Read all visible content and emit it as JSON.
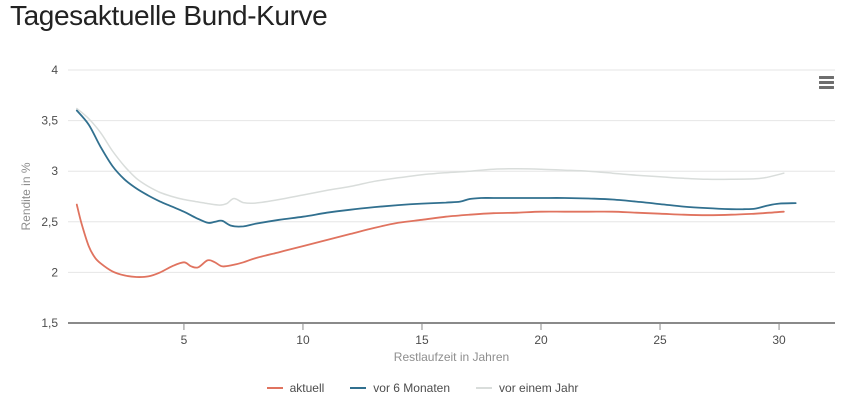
{
  "chart": {
    "title": "Tagesaktuelle Bund-Kurve",
    "context_menu_icon": "hamburger-menu",
    "colors": {
      "title_text": "#222222",
      "axis_line": "#8a8a8a",
      "gridline": "#e6e6e6",
      "tick_text": "#4d4d4d",
      "axis_title_text": "#8e8e8e",
      "legend_text": "#4d4d4d",
      "menu_icon": "#6e6e6e"
    }
  },
  "chart_data": {
    "type": "line",
    "title": "Tagesaktuelle Bund-Kurve",
    "xlabel": "Restlaufzeit in Jahren",
    "ylabel": "Rendite in %",
    "xlim": [
      0.13,
      32.35
    ],
    "ylim": [
      1.5,
      4
    ],
    "grid": "horizontal",
    "legend_position": "bottom",
    "x_ticks": [
      {
        "value": 5,
        "label": "5"
      },
      {
        "value": 10,
        "label": "10"
      },
      {
        "value": 15,
        "label": "15"
      },
      {
        "value": 20,
        "label": "20"
      },
      {
        "value": 25,
        "label": "25"
      },
      {
        "value": 30,
        "label": "30"
      }
    ],
    "y_ticks": [
      {
        "value": 4,
        "label": "4"
      },
      {
        "value": 3.5,
        "label": "3,5"
      },
      {
        "value": 3,
        "label": "3"
      },
      {
        "value": 2.5,
        "label": "2,5"
      },
      {
        "value": 2,
        "label": "2"
      },
      {
        "value": 1.5,
        "label": "1,5"
      }
    ],
    "series": [
      {
        "name": "vor einem Jahr",
        "color": "#d9dddb",
        "width": 1.5,
        "points": [
          [
            0.5,
            3.62
          ],
          [
            1,
            3.52
          ],
          [
            1.5,
            3.38
          ],
          [
            2,
            3.2
          ],
          [
            2.5,
            3.05
          ],
          [
            3,
            2.93
          ],
          [
            3.5,
            2.85
          ],
          [
            4,
            2.79
          ],
          [
            4.5,
            2.75
          ],
          [
            5,
            2.72
          ],
          [
            5.5,
            2.7
          ],
          [
            6,
            2.68
          ],
          [
            6.5,
            2.665
          ],
          [
            6.8,
            2.68
          ],
          [
            7.1,
            2.73
          ],
          [
            7.5,
            2.69
          ],
          [
            8,
            2.685
          ],
          [
            9,
            2.72
          ],
          [
            10,
            2.765
          ],
          [
            11,
            2.81
          ],
          [
            12,
            2.85
          ],
          [
            13,
            2.9
          ],
          [
            14,
            2.935
          ],
          [
            15,
            2.965
          ],
          [
            16,
            2.985
          ],
          [
            17,
            3.0
          ],
          [
            18,
            3.02
          ],
          [
            19,
            3.025
          ],
          [
            20,
            3.02
          ],
          [
            21,
            3.01
          ],
          [
            22,
            3.0
          ],
          [
            23,
            2.98
          ],
          [
            24,
            2.96
          ],
          [
            25,
            2.945
          ],
          [
            26,
            2.93
          ],
          [
            27,
            2.92
          ],
          [
            28,
            2.92
          ],
          [
            29,
            2.925
          ],
          [
            29.5,
            2.94
          ],
          [
            30.2,
            2.98
          ]
        ]
      },
      {
        "name": "vor 6 Monaten",
        "color": "#31708f",
        "width": 1.8,
        "points": [
          [
            0.5,
            3.6
          ],
          [
            1,
            3.46
          ],
          [
            1.5,
            3.24
          ],
          [
            2,
            3.05
          ],
          [
            2.5,
            2.92
          ],
          [
            3,
            2.83
          ],
          [
            3.5,
            2.76
          ],
          [
            4,
            2.7
          ],
          [
            4.5,
            2.65
          ],
          [
            5,
            2.6
          ],
          [
            5.5,
            2.54
          ],
          [
            6,
            2.49
          ],
          [
            6.3,
            2.5
          ],
          [
            6.6,
            2.51
          ],
          [
            7,
            2.46
          ],
          [
            7.5,
            2.455
          ],
          [
            8,
            2.48
          ],
          [
            9,
            2.52
          ],
          [
            10,
            2.55
          ],
          [
            11,
            2.59
          ],
          [
            12,
            2.62
          ],
          [
            13,
            2.645
          ],
          [
            14,
            2.665
          ],
          [
            15,
            2.68
          ],
          [
            16,
            2.69
          ],
          [
            16.6,
            2.7
          ],
          [
            17,
            2.725
          ],
          [
            17.5,
            2.735
          ],
          [
            18,
            2.735
          ],
          [
            19,
            2.735
          ],
          [
            20,
            2.735
          ],
          [
            21,
            2.735
          ],
          [
            22,
            2.73
          ],
          [
            23,
            2.72
          ],
          [
            24,
            2.7
          ],
          [
            25,
            2.675
          ],
          [
            26,
            2.65
          ],
          [
            27,
            2.635
          ],
          [
            28,
            2.625
          ],
          [
            28.5,
            2.625
          ],
          [
            29,
            2.63
          ],
          [
            29.5,
            2.66
          ],
          [
            30,
            2.68
          ],
          [
            30.7,
            2.685
          ]
        ]
      },
      {
        "name": "aktuell",
        "color": "#e0735f",
        "width": 1.8,
        "points": [
          [
            0.5,
            2.67
          ],
          [
            0.7,
            2.48
          ],
          [
            1,
            2.26
          ],
          [
            1.25,
            2.15
          ],
          [
            1.5,
            2.09
          ],
          [
            2,
            2.01
          ],
          [
            2.5,
            1.97
          ],
          [
            3,
            1.955
          ],
          [
            3.5,
            1.96
          ],
          [
            4,
            2.0
          ],
          [
            4.5,
            2.06
          ],
          [
            5,
            2.1
          ],
          [
            5.3,
            2.06
          ],
          [
            5.6,
            2.05
          ],
          [
            6,
            2.12
          ],
          [
            6.3,
            2.1
          ],
          [
            6.6,
            2.06
          ],
          [
            7,
            2.07
          ],
          [
            7.5,
            2.1
          ],
          [
            8,
            2.14
          ],
          [
            9,
            2.2
          ],
          [
            10,
            2.26
          ],
          [
            11,
            2.32
          ],
          [
            12,
            2.38
          ],
          [
            13,
            2.44
          ],
          [
            14,
            2.49
          ],
          [
            15,
            2.52
          ],
          [
            16,
            2.55
          ],
          [
            17,
            2.57
          ],
          [
            18,
            2.585
          ],
          [
            19,
            2.59
          ],
          [
            20,
            2.6
          ],
          [
            21,
            2.6
          ],
          [
            22,
            2.6
          ],
          [
            23,
            2.6
          ],
          [
            24,
            2.59
          ],
          [
            25,
            2.58
          ],
          [
            26,
            2.57
          ],
          [
            27,
            2.565
          ],
          [
            28,
            2.57
          ],
          [
            29,
            2.58
          ],
          [
            29.6,
            2.59
          ],
          [
            30.2,
            2.6
          ]
        ]
      }
    ],
    "legend_order": [
      "aktuell",
      "vor 6 Monaten",
      "vor einem Jahr"
    ]
  }
}
